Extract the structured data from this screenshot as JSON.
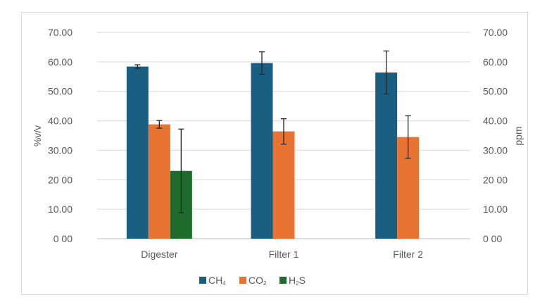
{
  "chart_data": {
    "type": "bar",
    "categories": [
      "Digester",
      "Filter 1",
      "Filter 2"
    ],
    "series": [
      {
        "name": "CH4",
        "label_main": "CH",
        "label_sub": "4",
        "color": "#1a5e82",
        "values": [
          58.4,
          59.6,
          56.4
        ],
        "errors": [
          0.6,
          3.8,
          7.3
        ]
      },
      {
        "name": "CO2",
        "label_main": "CO",
        "label_sub": "2",
        "color": "#e8722f",
        "values": [
          38.8,
          36.4,
          34.5
        ],
        "errors": [
          1.3,
          4.3,
          7.2
        ]
      },
      {
        "name": "H2S",
        "label_main": "H",
        "label_sub": "2",
        "label_tail": "S",
        "color": "#1e6b2d",
        "values": [
          23.0,
          null,
          null
        ],
        "errors": [
          14.2,
          null,
          null
        ]
      }
    ],
    "ylabel": "%v/v",
    "y2label": "ppm",
    "ylim": [
      0,
      70
    ],
    "y_ticks": [
      "0 00",
      "10.00",
      "20 00",
      "30.00",
      "40.00",
      "50.00",
      "60.00",
      "70.00"
    ],
    "y2_ticks": [
      "0 00",
      "10.00",
      "20 00",
      "30.00",
      "40.00",
      "50.00",
      "60.00",
      "70.00"
    ],
    "grid": true,
    "legend_position": "bottom"
  }
}
